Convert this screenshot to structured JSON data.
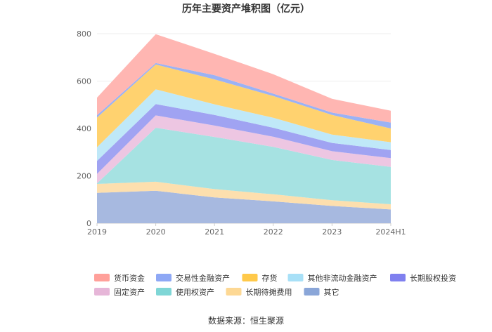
{
  "chart_data": {
    "type": "area",
    "stacked": true,
    "title": "历年主要资产堆积图（亿元）",
    "categories": [
      "2019",
      "2020",
      "2021",
      "2022",
      "2023",
      "2024H1"
    ],
    "yticks": [
      "0",
      "200",
      "400",
      "600",
      "800"
    ],
    "ylim": [
      0,
      800
    ],
    "grid": true,
    "legend_position": "bottom",
    "series": [
      {
        "name": "其它",
        "color": "#a7b9e0",
        "values": [
          128,
          137,
          109,
          92,
          73,
          58
        ]
      },
      {
        "name": "长期待摊费用",
        "color": "#fddfae",
        "values": [
          38,
          38,
          35,
          30,
          24,
          22
        ]
      },
      {
        "name": "使用权资产",
        "color": "#a6e2e2",
        "values": [
          2,
          228,
          220,
          200,
          170,
          158
        ]
      },
      {
        "name": "固定资产",
        "color": "#edc6e2",
        "values": [
          40,
          52,
          48,
          43,
          37,
          37
        ]
      },
      {
        "name": "长期股权投资",
        "color": "#a0a3f2",
        "values": [
          55,
          48,
          45,
          38,
          35,
          34
        ]
      },
      {
        "name": "其他非流动金融资产",
        "color": "#bfe8f8",
        "values": [
          58,
          62,
          45,
          42,
          35,
          33
        ]
      },
      {
        "name": "存货",
        "color": "#ffd26f",
        "values": [
          125,
          105,
          105,
          92,
          83,
          58
        ]
      },
      {
        "name": "交易性金融资产",
        "color": "#9bb2f5",
        "values": [
          10,
          6,
          18,
          10,
          10,
          25
        ]
      },
      {
        "name": "货币资金",
        "color": "#ffb6b2",
        "values": [
          74,
          122,
          90,
          82,
          58,
          50
        ]
      }
    ],
    "legend": [
      {
        "name": "货币资金",
        "color": "#ffa09a"
      },
      {
        "name": "交易性金融资产",
        "color": "#8ea8f5"
      },
      {
        "name": "存货",
        "color": "#ffc94a"
      },
      {
        "name": "其他非流动金融资产",
        "color": "#a8e0f7"
      },
      {
        "name": "长期股权投资",
        "color": "#7f80ef"
      },
      {
        "name": "固定资产",
        "color": "#e6b6d8"
      },
      {
        "name": "使用权资产",
        "color": "#7fd6d6"
      },
      {
        "name": "长期待摊费用",
        "color": "#fdd894"
      },
      {
        "name": "其它",
        "color": "#8aa6d8"
      }
    ],
    "source": "数据来源：恒生聚源"
  }
}
